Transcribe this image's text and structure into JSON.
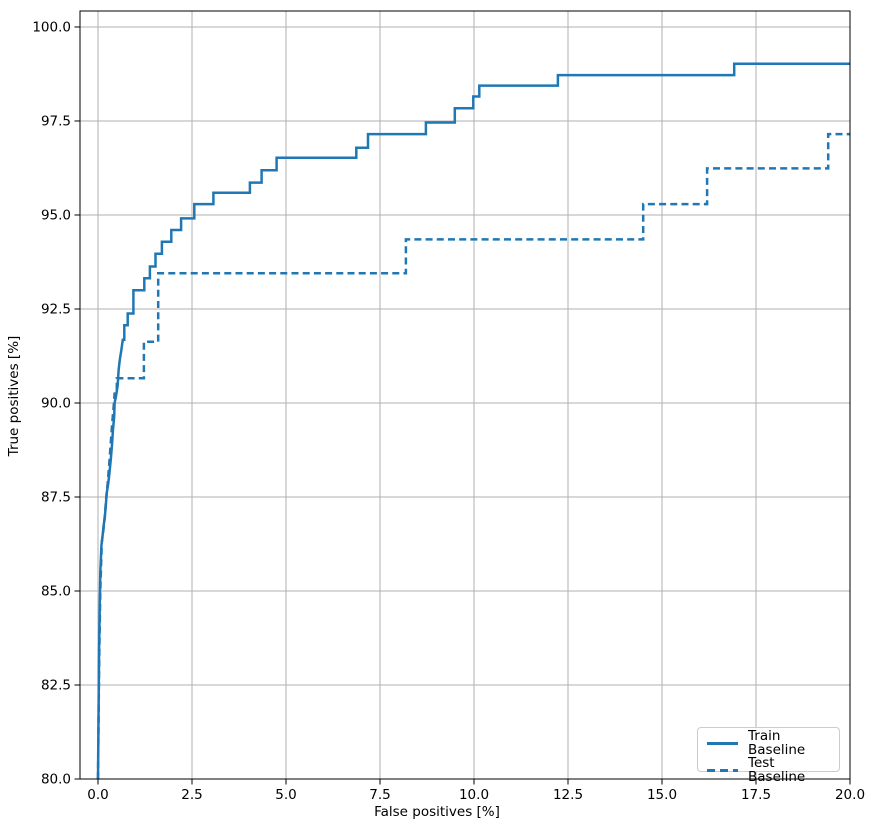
{
  "chart_data": {
    "type": "line",
    "title": "",
    "xlabel": "False positives [%]",
    "ylabel": "True positives [%]",
    "xlim": [
      -0.479,
      20.0
    ],
    "ylim": [
      80.0,
      100.425
    ],
    "grid": true,
    "grid_color": "#b0b0b0",
    "spine_color": "#000000",
    "accent_color": "#1f77b4",
    "x_ticks": {
      "values": [
        0.0,
        2.5,
        5.0,
        7.5,
        10.0,
        12.5,
        15.0,
        17.5,
        20.0
      ],
      "labels": [
        "0.0",
        "2.5",
        "5.0",
        "7.5",
        "10.0",
        "12.5",
        "15.0",
        "17.5",
        "20.0"
      ]
    },
    "y_ticks": {
      "values": [
        80.0,
        82.5,
        85.0,
        87.5,
        90.0,
        92.5,
        95.0,
        97.5,
        100.0
      ],
      "labels": [
        "80.0",
        "82.5",
        "85.0",
        "87.5",
        "90.0",
        "92.5",
        "95.0",
        "97.5",
        "100.0"
      ]
    },
    "legend": {
      "position": "lower right",
      "items": [
        "Train Baseline",
        "Test Baseline"
      ]
    },
    "series": [
      {
        "name": "Train Baseline",
        "line_style": "solid",
        "color": "#1f77b4",
        "points": [
          [
            0.0,
            80.0
          ],
          [
            0.03,
            83.5
          ],
          [
            0.06,
            85.5
          ],
          [
            0.09,
            86.2
          ],
          [
            0.12,
            86.45
          ],
          [
            0.15,
            86.75
          ],
          [
            0.18,
            86.95
          ],
          [
            0.21,
            87.3
          ],
          [
            0.23,
            87.6
          ],
          [
            0.27,
            87.85
          ],
          [
            0.3,
            88.1
          ],
          [
            0.34,
            88.5
          ],
          [
            0.37,
            88.85
          ],
          [
            0.4,
            89.3
          ],
          [
            0.43,
            89.65
          ],
          [
            0.44,
            90.0
          ],
          [
            0.48,
            90.2
          ],
          [
            0.52,
            90.45
          ],
          [
            0.55,
            90.9
          ],
          [
            0.58,
            91.15
          ],
          [
            0.62,
            91.4
          ],
          [
            0.66,
            91.68
          ],
          [
            0.7,
            91.68
          ],
          [
            0.7,
            92.07
          ],
          [
            0.79,
            92.07
          ],
          [
            0.79,
            92.38
          ],
          [
            0.94,
            92.38
          ],
          [
            0.94,
            93.0
          ],
          [
            1.23,
            93.0
          ],
          [
            1.23,
            93.32
          ],
          [
            1.38,
            93.32
          ],
          [
            1.38,
            93.63
          ],
          [
            1.53,
            93.63
          ],
          [
            1.53,
            93.97
          ],
          [
            1.7,
            93.97
          ],
          [
            1.7,
            94.29
          ],
          [
            1.95,
            94.29
          ],
          [
            1.95,
            94.6
          ],
          [
            2.21,
            94.6
          ],
          [
            2.21,
            94.91
          ],
          [
            2.56,
            94.91
          ],
          [
            2.56,
            95.29
          ],
          [
            3.07,
            95.29
          ],
          [
            3.07,
            95.59
          ],
          [
            4.04,
            95.59
          ],
          [
            4.04,
            95.86
          ],
          [
            4.35,
            95.86
          ],
          [
            4.35,
            96.19
          ],
          [
            4.75,
            96.19
          ],
          [
            4.75,
            96.52
          ],
          [
            6.87,
            96.52
          ],
          [
            6.87,
            96.79
          ],
          [
            7.18,
            96.79
          ],
          [
            7.18,
            97.15
          ],
          [
            8.72,
            97.15
          ],
          [
            8.72,
            97.46
          ],
          [
            9.49,
            97.46
          ],
          [
            9.49,
            97.84
          ],
          [
            9.98,
            97.84
          ],
          [
            9.98,
            98.15
          ],
          [
            10.14,
            98.15
          ],
          [
            10.14,
            98.44
          ],
          [
            12.23,
            98.44
          ],
          [
            12.23,
            98.72
          ],
          [
            16.92,
            98.72
          ],
          [
            16.92,
            99.02
          ],
          [
            20.0,
            99.02
          ]
        ]
      },
      {
        "name": "Test Baseline",
        "line_style": "dashed",
        "color": "#1f77b4",
        "points": [
          [
            0.0,
            80.0
          ],
          [
            0.03,
            83.0
          ],
          [
            0.06,
            85.0
          ],
          [
            0.1,
            86.3
          ],
          [
            0.14,
            86.6
          ],
          [
            0.18,
            87.0
          ],
          [
            0.22,
            87.5
          ],
          [
            0.26,
            87.9
          ],
          [
            0.3,
            88.4
          ],
          [
            0.34,
            88.95
          ],
          [
            0.38,
            89.5
          ],
          [
            0.42,
            89.95
          ],
          [
            0.44,
            90.25
          ],
          [
            0.5,
            90.25
          ],
          [
            0.5,
            90.66
          ],
          [
            1.22,
            90.66
          ],
          [
            1.22,
            91.63
          ],
          [
            1.6,
            91.63
          ],
          [
            1.6,
            93.45
          ],
          [
            8.19,
            93.45
          ],
          [
            8.19,
            94.35
          ],
          [
            14.5,
            94.35
          ],
          [
            14.5,
            95.29
          ],
          [
            16.2,
            95.29
          ],
          [
            16.2,
            96.24
          ],
          [
            19.42,
            96.24
          ],
          [
            19.42,
            97.15
          ],
          [
            20.0,
            97.15
          ]
        ]
      }
    ]
  }
}
